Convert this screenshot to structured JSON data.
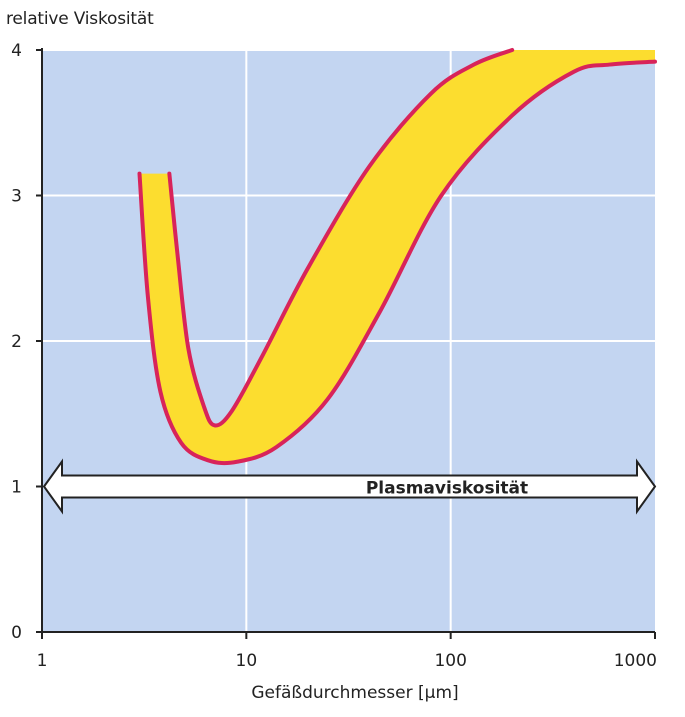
{
  "chart_data": {
    "type": "area",
    "ylabel": "relative Viskosität",
    "xlabel": "Gefäßdurchmesser [µm]",
    "x_scale": "log",
    "xlim": [
      1,
      1000
    ],
    "ylim": [
      0,
      4
    ],
    "x_ticks": [
      1,
      10,
      100,
      1000
    ],
    "x_tick_labels": [
      "1",
      "10",
      "100",
      "1000"
    ],
    "y_ticks": [
      0,
      1,
      2,
      3,
      4
    ],
    "y_tick_labels": [
      "0",
      "1",
      "2",
      "3",
      "4"
    ],
    "grid": true,
    "band": {
      "upper": [
        {
          "x": 4.2,
          "y": 3.15
        },
        {
          "x": 4.6,
          "y": 2.6
        },
        {
          "x": 5.2,
          "y": 1.95
        },
        {
          "x": 6.2,
          "y": 1.55
        },
        {
          "x": 7.0,
          "y": 1.42
        },
        {
          "x": 8.5,
          "y": 1.52
        },
        {
          "x": 12,
          "y": 1.9
        },
        {
          "x": 20,
          "y": 2.5
        },
        {
          "x": 40,
          "y": 3.2
        },
        {
          "x": 80,
          "y": 3.7
        },
        {
          "x": 130,
          "y": 3.9
        },
        {
          "x": 200,
          "y": 4.0
        }
      ],
      "lower": [
        {
          "x": 3.0,
          "y": 3.15
        },
        {
          "x": 3.3,
          "y": 2.3
        },
        {
          "x": 3.8,
          "y": 1.65
        },
        {
          "x": 4.8,
          "y": 1.3
        },
        {
          "x": 6.5,
          "y": 1.18
        },
        {
          "x": 9.0,
          "y": 1.17
        },
        {
          "x": 14,
          "y": 1.27
        },
        {
          "x": 25,
          "y": 1.6
        },
        {
          "x": 45,
          "y": 2.2
        },
        {
          "x": 90,
          "y": 3.0
        },
        {
          "x": 200,
          "y": 3.55
        },
        {
          "x": 400,
          "y": 3.85
        },
        {
          "x": 600,
          "y": 3.9
        },
        {
          "x": 1000,
          "y": 3.92
        }
      ],
      "right_top": [
        {
          "x": 200,
          "y": 4.0
        },
        {
          "x": 1000,
          "y": 4.0
        }
      ]
    },
    "reference": {
      "label": "Plasmaviskosität",
      "y": 1,
      "arrow": "both"
    },
    "colors": {
      "plot_background": "#c3d5f1",
      "band_fill": "#fcdd2f",
      "band_stroke": "#d8245a",
      "grid": "#ffffff",
      "arrow_fill": "#ffffff",
      "arrow_stroke": "#222222"
    }
  }
}
